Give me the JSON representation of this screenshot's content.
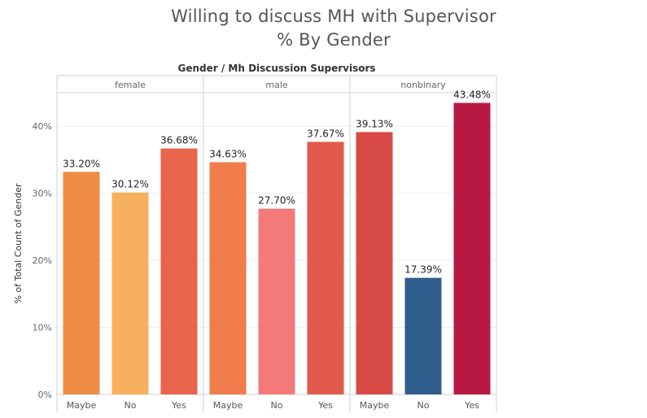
{
  "title_lines": [
    "Willing to discuss MH with Supervisor",
    "% By Gender"
  ],
  "chart_data": {
    "type": "bar",
    "header": "Gender / Mh Discussion Supervisors",
    "ylabel": "% of Total Count of Gender",
    "ylim": [
      0,
      45
    ],
    "yticks": [
      0,
      10,
      20,
      30,
      40
    ],
    "ytick_labels": [
      "0%",
      "10%",
      "20%",
      "30%",
      "40%"
    ],
    "grid": true,
    "legend": "none",
    "groups": [
      {
        "name": "female",
        "bars": [
          {
            "category": "Maybe",
            "value": 33.2,
            "label": "33.20%",
            "color": "#ef8c45"
          },
          {
            "category": "No",
            "value": 30.12,
            "label": "30.12%",
            "color": "#f7b15e"
          },
          {
            "category": "Yes",
            "value": 36.68,
            "label": "36.68%",
            "color": "#e8644a"
          }
        ]
      },
      {
        "name": "male",
        "bars": [
          {
            "category": "Maybe",
            "value": 34.63,
            "label": "34.63%",
            "color": "#ef7c4a"
          },
          {
            "category": "No",
            "value": 27.7,
            "label": "27.70%",
            "color": "#f47a7a"
          },
          {
            "category": "Yes",
            "value": 37.67,
            "label": "37.67%",
            "color": "#e25a4c"
          }
        ]
      },
      {
        "name": "nonbinary",
        "bars": [
          {
            "category": "Maybe",
            "value": 39.13,
            "label": "39.13%",
            "color": "#d84a46"
          },
          {
            "category": "No",
            "value": 17.39,
            "label": "17.39%",
            "color": "#305e8c"
          },
          {
            "category": "Yes",
            "value": 43.48,
            "label": "43.48%",
            "color": "#b81942"
          }
        ]
      }
    ]
  }
}
